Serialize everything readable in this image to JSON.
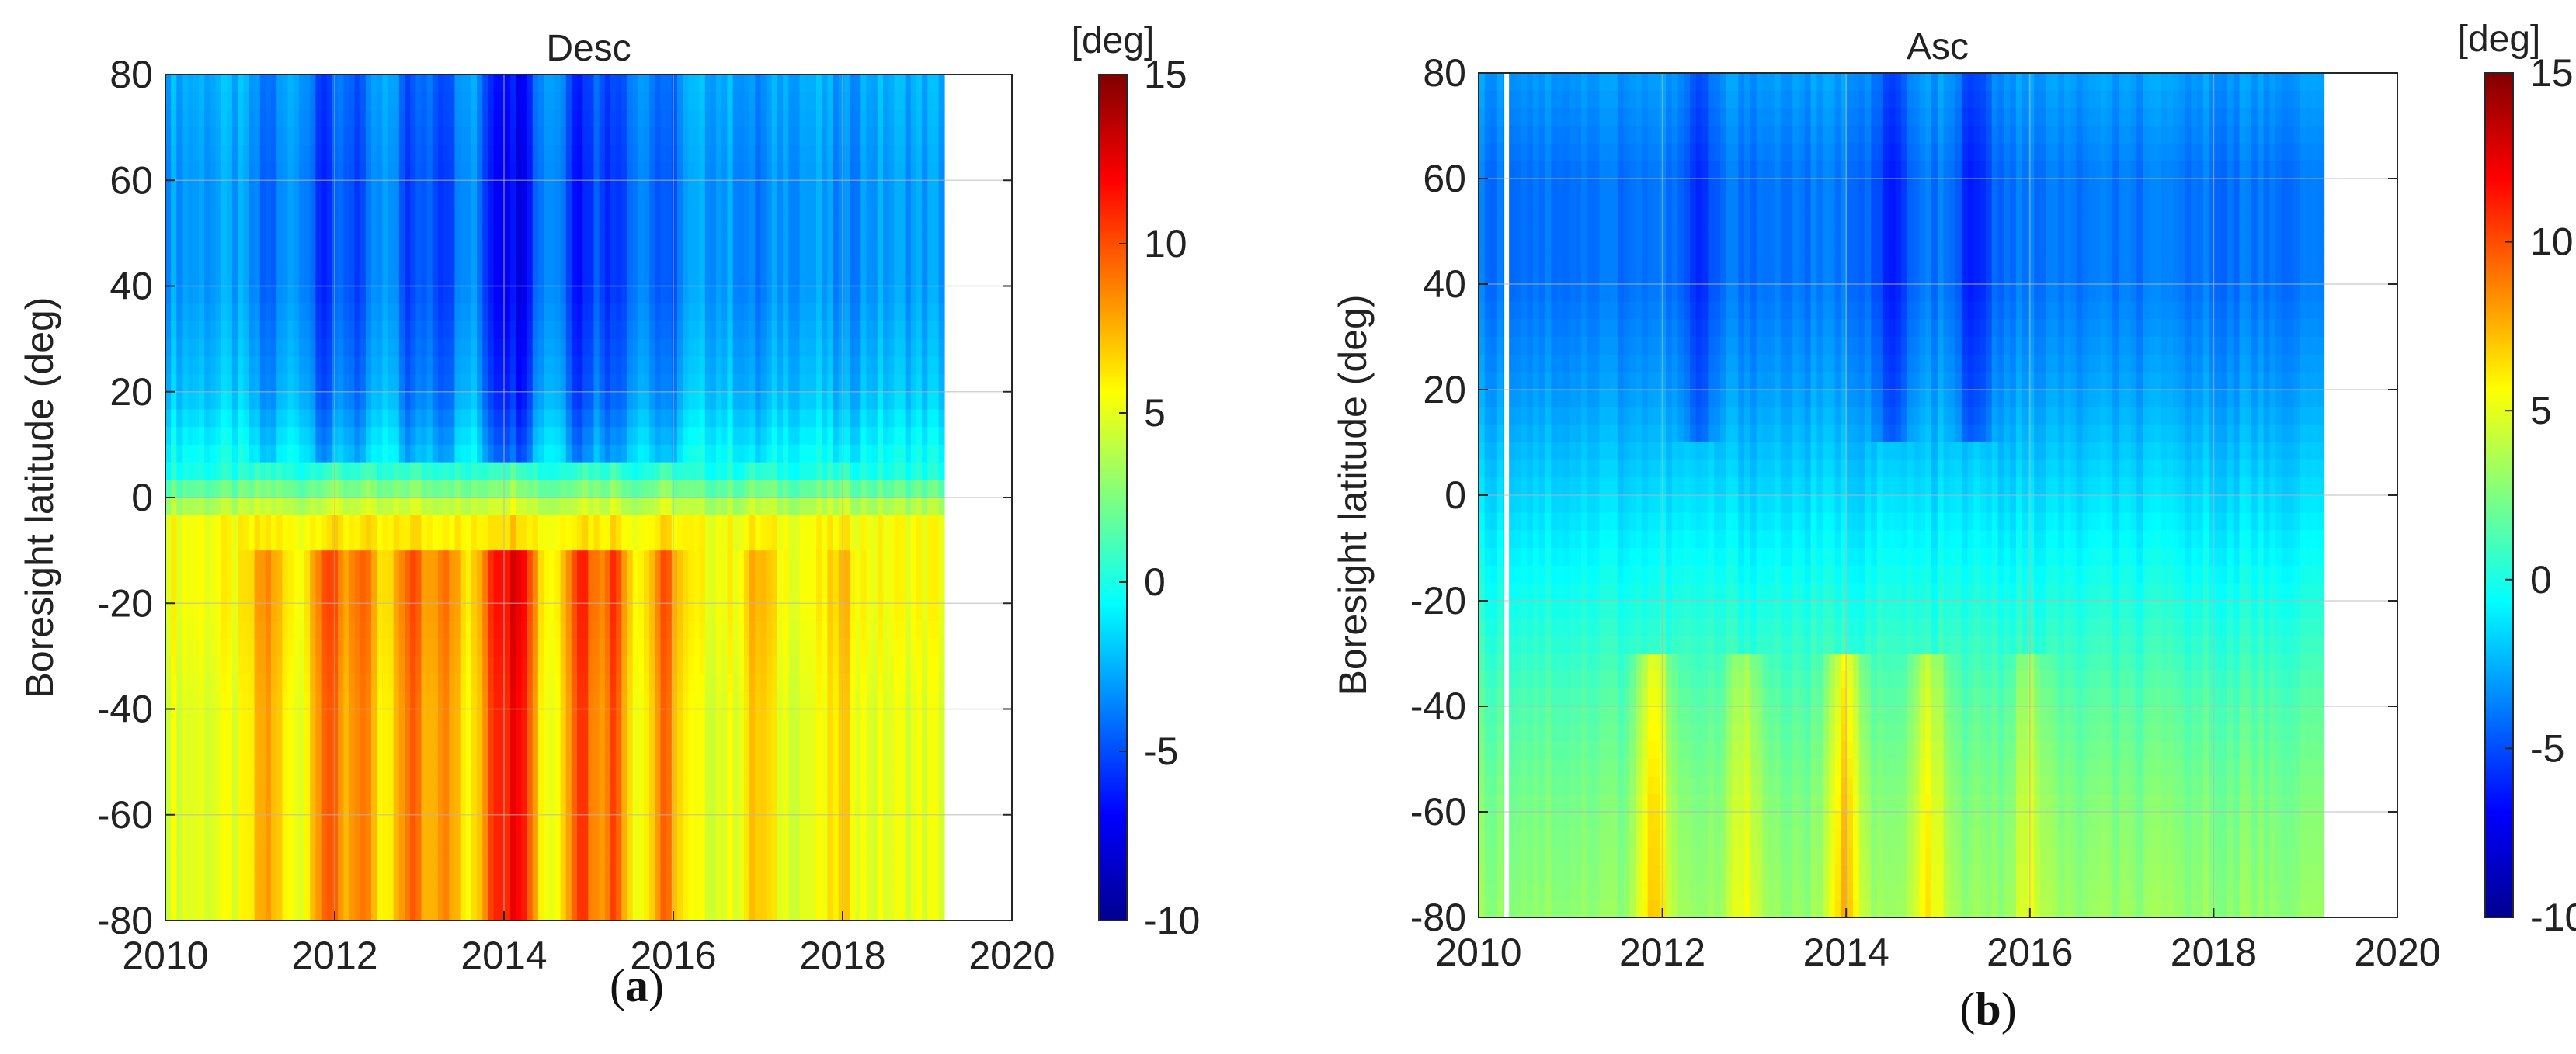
{
  "chart_data": [
    {
      "type": "heatmap",
      "panel_label": "a",
      "title": "Desc",
      "xlabel": "",
      "ylabel": "Boresight latitude (deg)",
      "xlim": [
        2010,
        2020
      ],
      "ylim": [
        -80,
        80
      ],
      "xticks": [
        2010,
        2012,
        2014,
        2016,
        2018,
        2020
      ],
      "yticks": [
        80,
        60,
        40,
        20,
        0,
        -20,
        -40,
        -60,
        -80
      ],
      "grid": true,
      "data_extent_x": [
        2010,
        2019.2
      ],
      "colorbar": {
        "label": "[deg]",
        "range": [
          -10,
          15
        ],
        "ticks": [
          15,
          10,
          5,
          0,
          -5,
          -10
        ],
        "colormap": "jet"
      },
      "latitudes": [
        80,
        60,
        40,
        20,
        5,
        -5,
        -20,
        -40,
        -60,
        -80
      ],
      "field_description": "value(year, lat) in deg",
      "background_by_latitude": [
        -2.5,
        -3.0,
        -3.0,
        -2.0,
        0.0,
        5.5,
        5.5,
        5.0,
        5.0,
        5.0
      ],
      "seasonal_features": [
        {
          "year": 2011.2,
          "lat_range": [
            -80,
            80
          ],
          "amplitude": 3.0
        },
        {
          "year": 2011.9,
          "lat_range": [
            -80,
            80
          ],
          "amplitude": 5.0
        },
        {
          "year": 2012.3,
          "lat_range": [
            -80,
            80
          ],
          "amplitude": 4.0
        },
        {
          "year": 2012.9,
          "lat_range": [
            -80,
            80
          ],
          "amplitude": 4.5
        },
        {
          "year": 2013.3,
          "lat_range": [
            -80,
            80
          ],
          "amplitude": 4.0
        },
        {
          "year": 2013.9,
          "lat_range": [
            -80,
            80
          ],
          "amplitude": 6.0
        },
        {
          "year": 2014.2,
          "lat_range": [
            -80,
            80
          ],
          "amplitude": 7.0
        },
        {
          "year": 2014.9,
          "lat_range": [
            -80,
            80
          ],
          "amplitude": 6.0
        },
        {
          "year": 2015.3,
          "lat_range": [
            -80,
            80
          ],
          "amplitude": 5.0
        },
        {
          "year": 2015.9,
          "lat_range": [
            -80,
            80
          ],
          "amplitude": 4.0
        },
        {
          "year": 2017.0,
          "lat_range": [
            -80,
            80
          ],
          "amplitude": 2.0
        },
        {
          "year": 2018.0,
          "lat_range": [
            -80,
            80
          ],
          "amplitude": 1.5
        }
      ]
    },
    {
      "type": "heatmap",
      "panel_label": "b",
      "title": "Asc",
      "xlabel": "",
      "ylabel": "Boresight latitude (deg)",
      "xlim": [
        2010,
        2020
      ],
      "ylim": [
        -80,
        80
      ],
      "xticks": [
        2010,
        2012,
        2014,
        2016,
        2018,
        2020
      ],
      "yticks": [
        80,
        60,
        40,
        20,
        0,
        -20,
        -40,
        -60,
        -80
      ],
      "grid": true,
      "data_extent_x": [
        2010,
        2019.2
      ],
      "colorbar": {
        "label": "[deg]",
        "range": [
          -10,
          15
        ],
        "ticks": [
          15,
          10,
          5,
          0,
          -5,
          -10
        ],
        "colormap": "jet"
      },
      "latitudes": [
        80,
        60,
        40,
        20,
        0,
        -20,
        -40,
        -60,
        -80
      ],
      "field_description": "value(year, lat) in deg",
      "background_by_latitude": [
        -3.0,
        -4.0,
        -4.0,
        -3.0,
        -1.5,
        0.0,
        1.5,
        2.5,
        3.0
      ],
      "seasonal_features": [
        {
          "year": 2011.9,
          "lat_range": [
            -80,
            -30
          ],
          "amplitude": 4.0
        },
        {
          "year": 2012.9,
          "lat_range": [
            -80,
            -30
          ],
          "amplitude": 2.5
        },
        {
          "year": 2014.0,
          "lat_range": [
            -80,
            -30
          ],
          "amplitude": 4.5
        },
        {
          "year": 2014.9,
          "lat_range": [
            -80,
            -30
          ],
          "amplitude": 3.0
        },
        {
          "year": 2016.0,
          "lat_range": [
            -80,
            -30
          ],
          "amplitude": 2.0
        },
        {
          "year": 2012.4,
          "lat_range": [
            10,
            80
          ],
          "amplitude": -2.0
        },
        {
          "year": 2014.5,
          "lat_range": [
            10,
            80
          ],
          "amplitude": -2.5
        },
        {
          "year": 2015.4,
          "lat_range": [
            10,
            80
          ],
          "amplitude": -2.5
        }
      ]
    }
  ]
}
